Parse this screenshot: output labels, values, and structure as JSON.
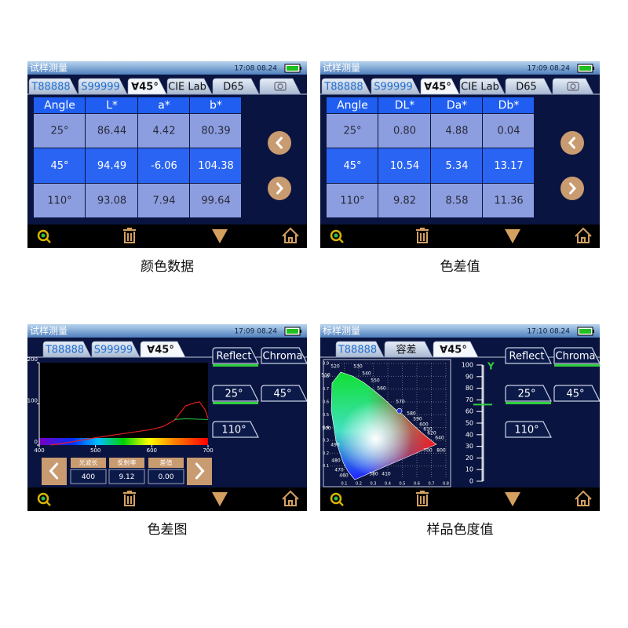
{
  "panels": [
    {
      "title": "试样测量",
      "time": "17:08 08.24",
      "tabs": [
        "T88888",
        "S99999",
        "∀45°",
        "CIE Lab",
        "D65"
      ],
      "table": {
        "header": [
          "Angle",
          "L*",
          "a*",
          "b*"
        ],
        "rows": [
          [
            "25°",
            "86.44",
            "4.42",
            "80.39"
          ],
          [
            "45°",
            "94.49",
            "-6.06",
            "104.38"
          ],
          [
            "110°",
            "93.08",
            "7.94",
            "99.64"
          ]
        ]
      },
      "caption": "颜色数据"
    },
    {
      "title": "试样测量",
      "time": "17:09 08.24",
      "tabs": [
        "T88888",
        "S99999",
        "∀45°",
        "CIE Lab",
        "D65"
      ],
      "table": {
        "header": [
          "Angle",
          "DL*",
          "Da*",
          "Db*"
        ],
        "rows": [
          [
            "25°",
            "0.80",
            "4.88",
            "0.04"
          ],
          [
            "45°",
            "10.54",
            "5.34",
            "13.17"
          ],
          [
            "110°",
            "9.82",
            "8.58",
            "11.36"
          ]
        ]
      },
      "caption": "色差值"
    },
    {
      "title": "试样测量",
      "time": "17:09 08.24",
      "tabs": [
        "T88888",
        "S99999",
        "∀45°"
      ],
      "buttons": [
        "Reflect",
        "Chroma",
        "25°",
        "45°",
        "110°"
      ],
      "chart": {
        "type": "line",
        "xlim": [
          400,
          700
        ],
        "ylim": [
          0,
          200
        ],
        "xticks": [
          400,
          500,
          600,
          700
        ],
        "yticks": [
          0,
          100,
          200
        ],
        "series": [
          {
            "color": "#e02020",
            "x": [
              420,
              450,
              500,
              550,
              600,
              620,
              640,
              660,
              675,
              685,
              695,
              700
            ],
            "values": [
              0,
              6,
              18,
              28,
              38,
              45,
              60,
              95,
              102,
              105,
              85,
              65
            ]
          },
          {
            "color": "#20b040",
            "x": [
              640,
              660,
              680,
              700
            ],
            "values": [
              62,
              64,
              63,
              62
            ]
          }
        ]
      },
      "readout": {
        "labels": [
          "光波长",
          "反射率",
          "差值"
        ],
        "values": [
          "400",
          "9.12",
          "0.00"
        ]
      },
      "caption": "色差图"
    },
    {
      "title": "标样测量",
      "time": "17:10 08.24",
      "tabs": [
        "T88888",
        "容差",
        "∀45°"
      ],
      "buttons": [
        "Reflect",
        "Chroma",
        "25°",
        "45°",
        "110°"
      ],
      "chromaticity": {
        "type": "scatter",
        "xlim": [
          0,
          0.8
        ],
        "ylim": [
          0,
          0.9
        ],
        "xticks": [
          0.1,
          0.2,
          0.3,
          0.4,
          0.5,
          0.6,
          0.7,
          0.8
        ],
        "yticks": [
          0.1,
          0.2,
          0.3,
          0.4,
          0.5,
          0.6,
          0.7,
          0.8,
          0.9
        ],
        "wavelengths": [
          "380",
          "410",
          "460",
          "470",
          "480",
          "490",
          "500",
          "510",
          "520",
          "530",
          "540",
          "550",
          "560",
          "570",
          "580",
          "590",
          "600",
          "610",
          "620",
          "640",
          "700",
          "800"
        ],
        "point": {
          "x": 0.48,
          "y": 0.53
        }
      },
      "lightness": {
        "label": "Y",
        "ylim": [
          0,
          100
        ],
        "yticks": [
          0,
          10,
          20,
          30,
          40,
          50,
          60,
          70,
          80,
          90,
          100
        ],
        "value": 66
      },
      "caption": "样品色度值"
    }
  ]
}
